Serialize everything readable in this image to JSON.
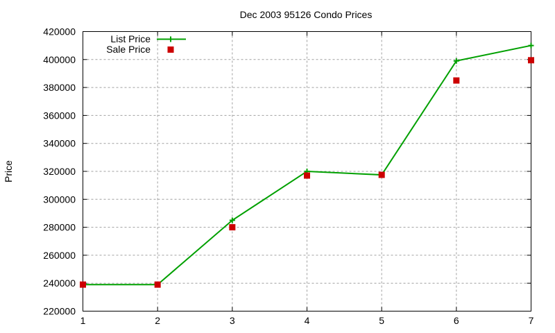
{
  "chart_data": {
    "type": "line",
    "title": "Dec 2003 95126 Condo Prices",
    "xlabel": "",
    "ylabel": "Price",
    "x": [
      1,
      2,
      3,
      4,
      5,
      6,
      7
    ],
    "xlim": [
      1,
      7
    ],
    "ylim": [
      220000,
      420000
    ],
    "xticks": [
      "1",
      "2",
      "3",
      "4",
      "5",
      "6",
      "7"
    ],
    "yticks": [
      "220000",
      "240000",
      "260000",
      "280000",
      "300000",
      "320000",
      "340000",
      "360000",
      "380000",
      "400000",
      "420000"
    ],
    "grid": true,
    "legend_position": "top-left",
    "series": [
      {
        "name": "List Price",
        "style": "linespoints",
        "marker": "plus",
        "color": "#00a000",
        "values": [
          239000,
          239000,
          285000,
          320000,
          317500,
          399000,
          410000
        ]
      },
      {
        "name": "Sale Price",
        "style": "points",
        "marker": "square",
        "color": "#cc0000",
        "values": [
          239000,
          239000,
          280000,
          317000,
          317500,
          385000,
          399500
        ]
      }
    ]
  }
}
